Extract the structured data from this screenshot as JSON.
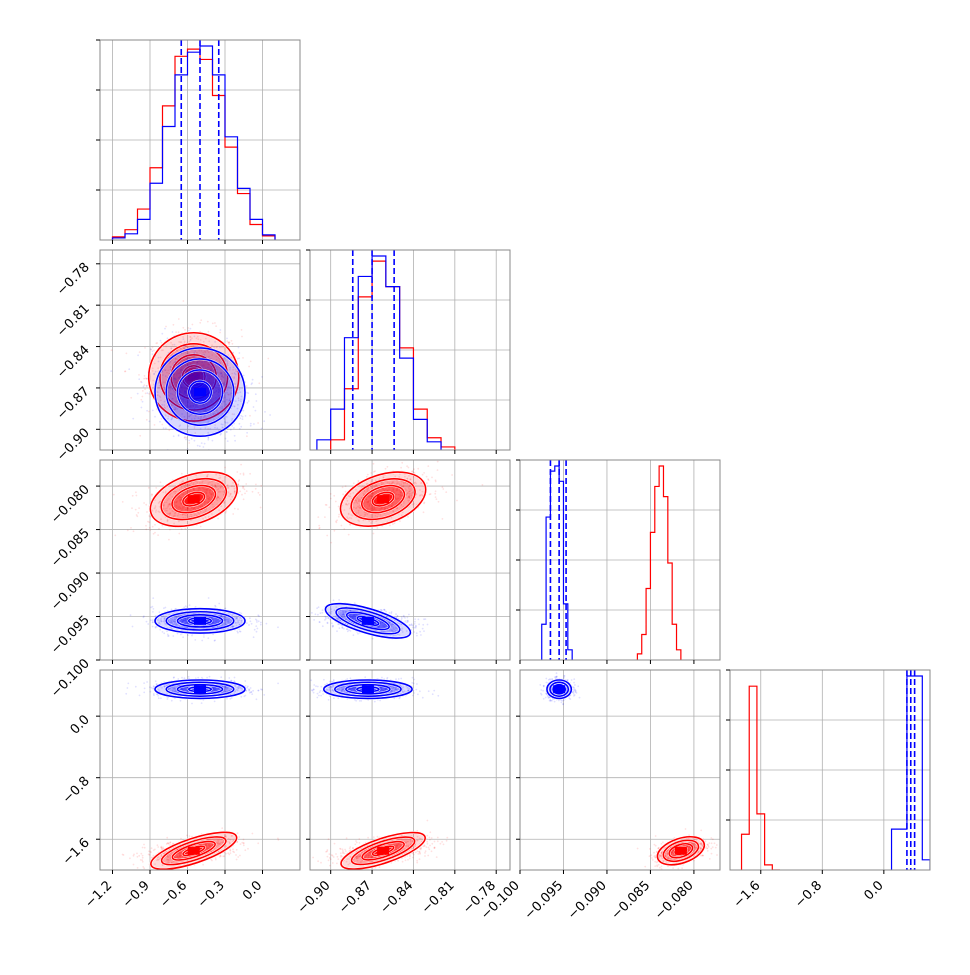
{
  "chart_data": {
    "type": "corner",
    "n_params": 4,
    "colors": {
      "model_a": "#ff0000",
      "model_b": "#0000ff"
    },
    "grid": true,
    "axes": [
      {
        "range": [
          -1.3,
          0.3
        ],
        "ticks": [
          -1.2,
          -0.9,
          -0.6,
          -0.3,
          0.0
        ],
        "tick_labels": [
          "−1.2",
          "−0.9",
          "−0.6",
          "−0.3",
          "0.0"
        ]
      },
      {
        "range": [
          -0.915,
          -0.77
        ],
        "ticks": [
          -0.9,
          -0.87,
          -0.84,
          -0.81,
          -0.78
        ],
        "tick_labels": [
          "−0.90",
          "−0.87",
          "−0.84",
          "−0.81",
          "−0.78"
        ]
      },
      {
        "range": [
          -0.1,
          -0.077
        ],
        "ticks": [
          -0.1,
          -0.095,
          -0.09,
          -0.085,
          -0.08
        ],
        "tick_labels": [
          "−0.100",
          "−0.095",
          "−0.090",
          "−0.085",
          "−0.080"
        ]
      },
      {
        "range": [
          -2.0,
          0.6
        ],
        "ticks": [
          -1.6,
          -0.8,
          0.0
        ],
        "tick_labels": [
          "−1.6",
          "−0.8",
          "0.0"
        ]
      }
    ],
    "row3_left_labels": [
      "−0.100",
      "0.0",
      "−0.8",
      "−1.6"
    ],
    "quantiles_model_b": [
      [
        -0.65,
        -0.5,
        -0.35
      ],
      [
        -0.884,
        -0.87,
        -0.854
      ],
      [
        -0.0965,
        -0.0955,
        -0.0947
      ],
      [
        0.3,
        0.35,
        0.4
      ]
    ],
    "hist_model_b": [
      {
        "edges": [
          -1.2,
          -1.1,
          -1.0,
          -0.9,
          -0.8,
          -0.7,
          -0.6,
          -0.5,
          -0.4,
          -0.3,
          -0.2,
          -0.1,
          0.0,
          0.1
        ],
        "counts": [
          2,
          6,
          20,
          55,
          110,
          160,
          182,
          188,
          160,
          100,
          50,
          20,
          5
        ]
      },
      {
        "edges": [
          -0.91,
          -0.9,
          -0.89,
          -0.88,
          -0.87,
          -0.86,
          -0.85,
          -0.84,
          -0.83,
          -0.82
        ],
        "counts": [
          10,
          40,
          110,
          170,
          190,
          160,
          90,
          30,
          8
        ]
      },
      {
        "edges": [
          -0.0975,
          -0.097,
          -0.0965,
          -0.096,
          -0.0955,
          -0.095,
          -0.0945,
          -0.094
        ],
        "counts": [
          35,
          140,
          185,
          190,
          175,
          55,
          10
        ]
      },
      {
        "edges": [
          0.1,
          0.3,
          0.5,
          0.6
        ],
        "counts": [
          40,
          190,
          10
        ]
      }
    ],
    "hist_model_a": [
      {
        "edges": [
          -1.2,
          -1.1,
          -1.0,
          -0.9,
          -0.8,
          -0.7,
          -0.6,
          -0.5,
          -0.4,
          -0.3,
          -0.2,
          -0.1,
          0.0,
          0.1
        ],
        "counts": [
          3,
          10,
          30,
          70,
          130,
          178,
          185,
          175,
          140,
          90,
          45,
          15,
          4
        ]
      },
      {
        "edges": [
          -0.9,
          -0.89,
          -0.88,
          -0.87,
          -0.86,
          -0.85,
          -0.84,
          -0.83,
          -0.82,
          -0.81
        ],
        "counts": [
          10,
          60,
          150,
          185,
          160,
          100,
          40,
          12,
          3
        ]
      },
      {
        "edges": [
          -0.0865,
          -0.086,
          -0.0855,
          -0.085,
          -0.0845,
          -0.084,
          -0.0835,
          -0.083,
          -0.0825,
          -0.082,
          -0.0815
        ],
        "counts": [
          6,
          25,
          70,
          125,
          170,
          190,
          160,
          95,
          35,
          10
        ]
      },
      {
        "edges": [
          -1.85,
          -1.75,
          -1.65,
          -1.55,
          -1.45,
          -1.35
        ],
        "counts": [
          35,
          180,
          55,
          5,
          0
        ]
      }
    ],
    "centers_model_a": [
      -0.55,
      -0.862,
      -0.0815,
      -1.75
    ],
    "centers_model_b": [
      -0.5,
      -0.873,
      -0.0955,
      0.35
    ],
    "sigmas_model_a": [
      0.18,
      0.016,
      0.0014,
      0.08
    ],
    "sigmas_model_b": [
      0.18,
      0.016,
      0.0007,
      0.06
    ]
  }
}
